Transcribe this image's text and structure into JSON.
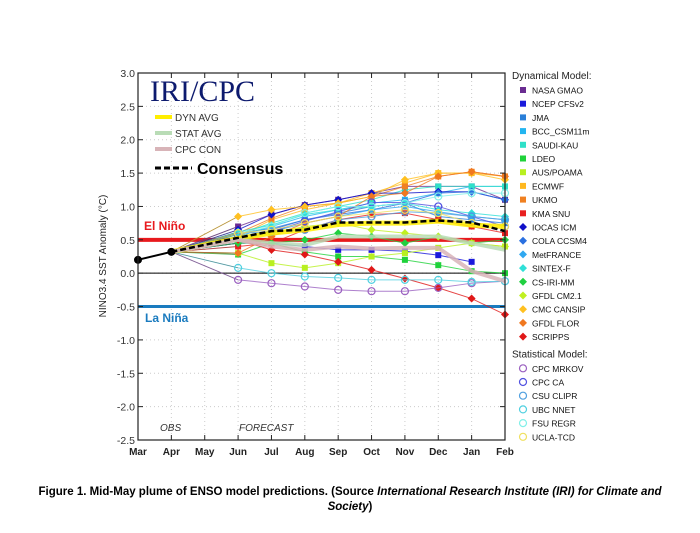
{
  "chart_data": {
    "type": "line",
    "logo": "IRI/CPC",
    "ylabel": "NINO3.4 SST Anomaly (°C)",
    "xlabel": "",
    "ylim": [
      -2.5,
      3.0
    ],
    "yticks": [
      "3.0",
      "2.5",
      "2.0",
      "1.5",
      "1.0",
      "0.5",
      "0.0",
      "-0.5",
      "-1.0",
      "-1.5",
      "-2.0",
      "-2.5"
    ],
    "categories": [
      "Mar",
      "Apr",
      "May",
      "Jun",
      "Jul",
      "Aug",
      "Sep",
      "Oct",
      "Nov",
      "Dec",
      "Jan",
      "Feb"
    ],
    "grid": true,
    "annotations": {
      "obs": "OBS",
      "forecast": "FORECAST",
      "el_nino": "El Niño",
      "la_nina": "La Niña"
    },
    "thresholds": {
      "el_nino": 0.5,
      "la_nina": -0.5,
      "el_nino_color": "#e8191d",
      "la_nina_color": "#1a7bbf"
    },
    "observed": {
      "categories": [
        "Mar",
        "Apr"
      ],
      "values": [
        0.2,
        0.32
      ]
    },
    "forecast_categories": [
      "Jun",
      "Jul",
      "Aug",
      "Sep",
      "Oct",
      "Nov",
      "Dec",
      "Jan",
      "Feb"
    ],
    "average_lines": [
      {
        "name": "DYN AVG",
        "color": "#ffee00",
        "values": [
          0.52,
          0.6,
          0.65,
          0.73,
          0.75,
          0.75,
          0.78,
          0.72,
          0.7
        ]
      },
      {
        "name": "STAT AVG",
        "color": "#b9dcb6",
        "values": [
          0.5,
          0.45,
          0.42,
          0.55,
          0.55,
          0.55,
          0.55,
          0.45,
          0.35
        ]
      },
      {
        "name": "CPC CON",
        "color": "#d8b4b8",
        "values": [
          0.5,
          0.4,
          0.35,
          0.4,
          0.37,
          0.38,
          0.38,
          0.03,
          -0.12
        ]
      },
      {
        "name": "Consensus",
        "color": "#000000",
        "values": [
          0.53,
          0.63,
          0.65,
          0.76,
          0.76,
          0.76,
          0.79,
          0.76,
          0.63
        ]
      }
    ],
    "legend_groups": [
      {
        "title": "Dynamical Model:",
        "series": [
          {
            "name": "NASA GMAO",
            "color": "#6a2c91",
            "marker": "square",
            "values": [
              0.7,
              0.88,
              1.02,
              1.1,
              1.2,
              1.3,
              1.3,
              1.3,
              1.1
            ]
          },
          {
            "name": "NCEP CFSv2",
            "color": "#1a1adb",
            "marker": "square",
            "values": [
              0.45,
              0.45,
              0.4,
              0.35,
              0.35,
              0.33,
              0.27,
              0.17,
              null
            ]
          },
          {
            "name": "JMA",
            "color": "#2a7fd8",
            "marker": "square",
            "values": [
              0.6,
              0.67,
              0.8,
              0.9,
              1.0,
              1.05,
              0.85,
              0.8,
              0.75
            ]
          },
          {
            "name": "BCC_CSM11m",
            "color": "#22b5f0",
            "marker": "square",
            "values": [
              0.55,
              0.7,
              0.85,
              0.95,
              1.05,
              1.1,
              1.2,
              1.3,
              1.3
            ]
          },
          {
            "name": "SAUDI-KAU",
            "color": "#2fe0c8",
            "marker": "square",
            "values": [
              0.58,
              0.75,
              0.9,
              1.0,
              1.1,
              1.25,
              1.3,
              1.3,
              1.3
            ]
          },
          {
            "name": "LDEO",
            "color": "#1fd23a",
            "marker": "square",
            "values": [
              0.28,
              0.45,
              0.32,
              0.25,
              0.25,
              0.2,
              0.12,
              0.03,
              0.0
            ]
          },
          {
            "name": "AUS/POAMA",
            "color": "#b8f020",
            "marker": "square",
            "values": [
              0.3,
              0.15,
              0.08,
              0.15,
              0.25,
              0.3,
              0.38,
              0.45,
              0.4
            ]
          },
          {
            "name": "ECMWF",
            "color": "#ffb820",
            "marker": "square",
            "values": [
              0.55,
              0.8,
              0.95,
              1.05,
              1.2,
              1.35,
              1.5,
              1.5,
              1.45
            ]
          },
          {
            "name": "UKMO",
            "color": "#f08020",
            "marker": "square",
            "values": [
              0.6,
              0.82,
              1.0,
              1.05,
              1.15,
              1.3,
              1.45,
              1.52,
              1.45
            ]
          },
          {
            "name": "KMA SNU",
            "color": "#e82020",
            "marker": "square",
            "values": [
              0.4,
              0.45,
              0.65,
              0.8,
              0.88,
              0.9,
              0.8,
              0.7,
              0.6
            ]
          },
          {
            "name": "IOCAS ICM",
            "color": "#1010c8",
            "marker": "diamond",
            "values": [
              0.65,
              0.88,
              1.02,
              1.1,
              1.2,
              1.2,
              1.22,
              1.22,
              1.1
            ]
          },
          {
            "name": "COLA CCSM4",
            "color": "#2a70e0",
            "marker": "diamond",
            "values": [
              0.45,
              0.65,
              0.8,
              0.88,
              0.95,
              1.05,
              1.2,
              1.22,
              1.1
            ]
          },
          {
            "name": "MetFRANCE",
            "color": "#30a8f0",
            "marker": "diamond",
            "values": [
              0.55,
              0.62,
              0.75,
              0.85,
              0.95,
              1.0,
              0.92,
              0.85,
              0.8
            ]
          },
          {
            "name": "SINTEX-F",
            "color": "#30e0d8",
            "marker": "diamond",
            "values": [
              0.62,
              0.72,
              0.88,
              0.95,
              1.0,
              1.05,
              0.95,
              0.9,
              0.85
            ]
          },
          {
            "name": "CS-IRI-MM",
            "color": "#20d040",
            "marker": "diamond",
            "values": [
              0.45,
              0.45,
              0.5,
              0.6,
              0.55,
              0.45,
              0.55,
              0.45,
              0.5
            ]
          },
          {
            "name": "GFDL CM2.1",
            "color": "#c0f020",
            "marker": "diamond",
            "values": [
              0.5,
              0.6,
              0.7,
              0.75,
              0.65,
              0.6,
              0.55,
              0.45,
              0.4
            ]
          },
          {
            "name": "CMC CANSIP",
            "color": "#ffc020",
            "marker": "diamond",
            "values": [
              0.85,
              0.95,
              1.0,
              1.05,
              1.15,
              1.4,
              1.5,
              1.5,
              1.4
            ]
          },
          {
            "name": "GFDL FLOR",
            "color": "#f07820",
            "marker": "diamond",
            "values": [
              0.3,
              0.55,
              0.75,
              0.85,
              1.15,
              1.2,
              1.45,
              1.52,
              1.45
            ]
          },
          {
            "name": "SCRIPPS",
            "color": "#e01818",
            "marker": "diamond",
            "values": [
              0.5,
              0.35,
              0.28,
              0.17,
              0.05,
              -0.08,
              -0.22,
              -0.38,
              -0.62
            ]
          }
        ]
      },
      {
        "title": "Statistical Model:",
        "series": [
          {
            "name": "CPC MRKOV",
            "color": "#9a60c0",
            "marker": "circle",
            "values": [
              -0.1,
              -0.15,
              -0.2,
              -0.25,
              -0.27,
              -0.27,
              -0.22,
              -0.15,
              -0.12
            ]
          },
          {
            "name": "CPC CA",
            "color": "#5050e0",
            "marker": "circle",
            "values": [
              0.55,
              0.62,
              0.78,
              0.92,
              1.06,
              1.06,
              1.0,
              0.85,
              0.7
            ]
          },
          {
            "name": "CSU CLIPR",
            "color": "#50a0e0",
            "marker": "circle",
            "values": [
              0.6,
              0.62,
              0.65,
              0.8,
              0.85,
              0.92,
              0.9,
              0.85,
              0.8
            ]
          },
          {
            "name": "UBC NNET",
            "color": "#50d0e0",
            "marker": "circle",
            "values": [
              0.08,
              0.0,
              -0.05,
              -0.07,
              -0.1,
              -0.1,
              -0.1,
              -0.13,
              -0.12
            ]
          },
          {
            "name": "FSU REGR",
            "color": "#80f0e8",
            "marker": "circle",
            "values": [
              0.6,
              0.7,
              0.9,
              1.0,
              1.0,
              1.05,
              1.15,
              1.2,
              1.2
            ]
          },
          {
            "name": "UCLA-TCD",
            "color": "#f0e060",
            "marker": "circle",
            "values": [
              0.6,
              0.65,
              0.75,
              0.85,
              0.9,
              0.95,
              0.9,
              0.75,
              0.7
            ]
          }
        ]
      }
    ]
  },
  "caption": {
    "bold_text": "Figure 1. Mid-May plume of ENSO model predictions. (Source ",
    "italic_text": "International Research Institute (IRI) for Climate and Society",
    "close": ")"
  }
}
